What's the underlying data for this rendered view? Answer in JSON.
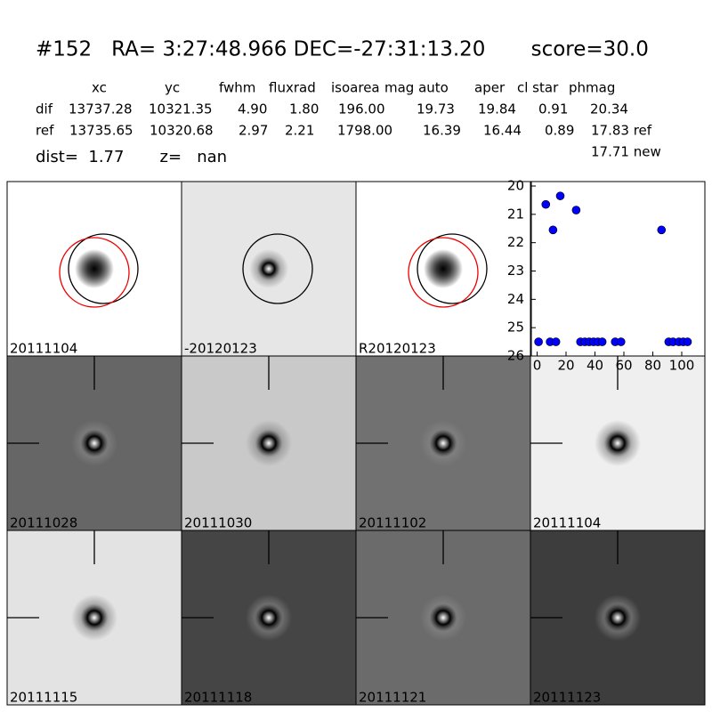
{
  "header": {
    "title": "#152   RA= 3:27:48.966 DEC=-27:31:13.20       score=30.0",
    "columns": [
      "xc",
      "yc",
      "fwhm",
      "fluxrad",
      "isoarea",
      "mag auto",
      "aper",
      "cl star",
      "phmag"
    ],
    "rows": [
      [
        "dif",
        "13737.28",
        "10321.35",
        "4.90",
        "1.80",
        "196.00",
        "19.73",
        "19.84",
        "0.91",
        "20.34"
      ],
      [
        "ref",
        "13735.65",
        "10320.68",
        "2.97",
        "2.21",
        "1798.00",
        "16.39",
        "16.44",
        "0.89",
        "17.83 ref"
      ]
    ],
    "new_mag": "17.71 new",
    "dist_line": "dist=  1.77       z=   nan"
  },
  "panels": [
    "20111104",
    "-20120123",
    "R20120123",
    "20111028",
    "20111030",
    "20111102",
    "20111104",
    "20111115",
    "20111118",
    "20111121",
    "20111123"
  ],
  "chart_data": {
    "type": "scatter",
    "color": "#0000ff",
    "x": [
      1,
      6,
      9,
      11,
      13,
      16,
      27,
      30,
      33,
      36,
      39,
      42,
      45,
      54,
      58,
      86,
      91,
      94,
      98,
      101,
      104
    ],
    "values": [
      25.5,
      20.65,
      25.5,
      21.55,
      25.5,
      20.35,
      20.85,
      25.5,
      25.5,
      25.5,
      25.5,
      25.5,
      25.5,
      25.5,
      25.5,
      21.55,
      25.5,
      25.5,
      25.5,
      25.5,
      25.5
    ],
    "xlim": [
      -4,
      116
    ],
    "ylim": [
      26,
      20
    ],
    "xticks": [
      0,
      20,
      40,
      60,
      80,
      100
    ],
    "yticks": [
      20,
      21,
      22,
      23,
      24,
      25,
      26
    ]
  }
}
